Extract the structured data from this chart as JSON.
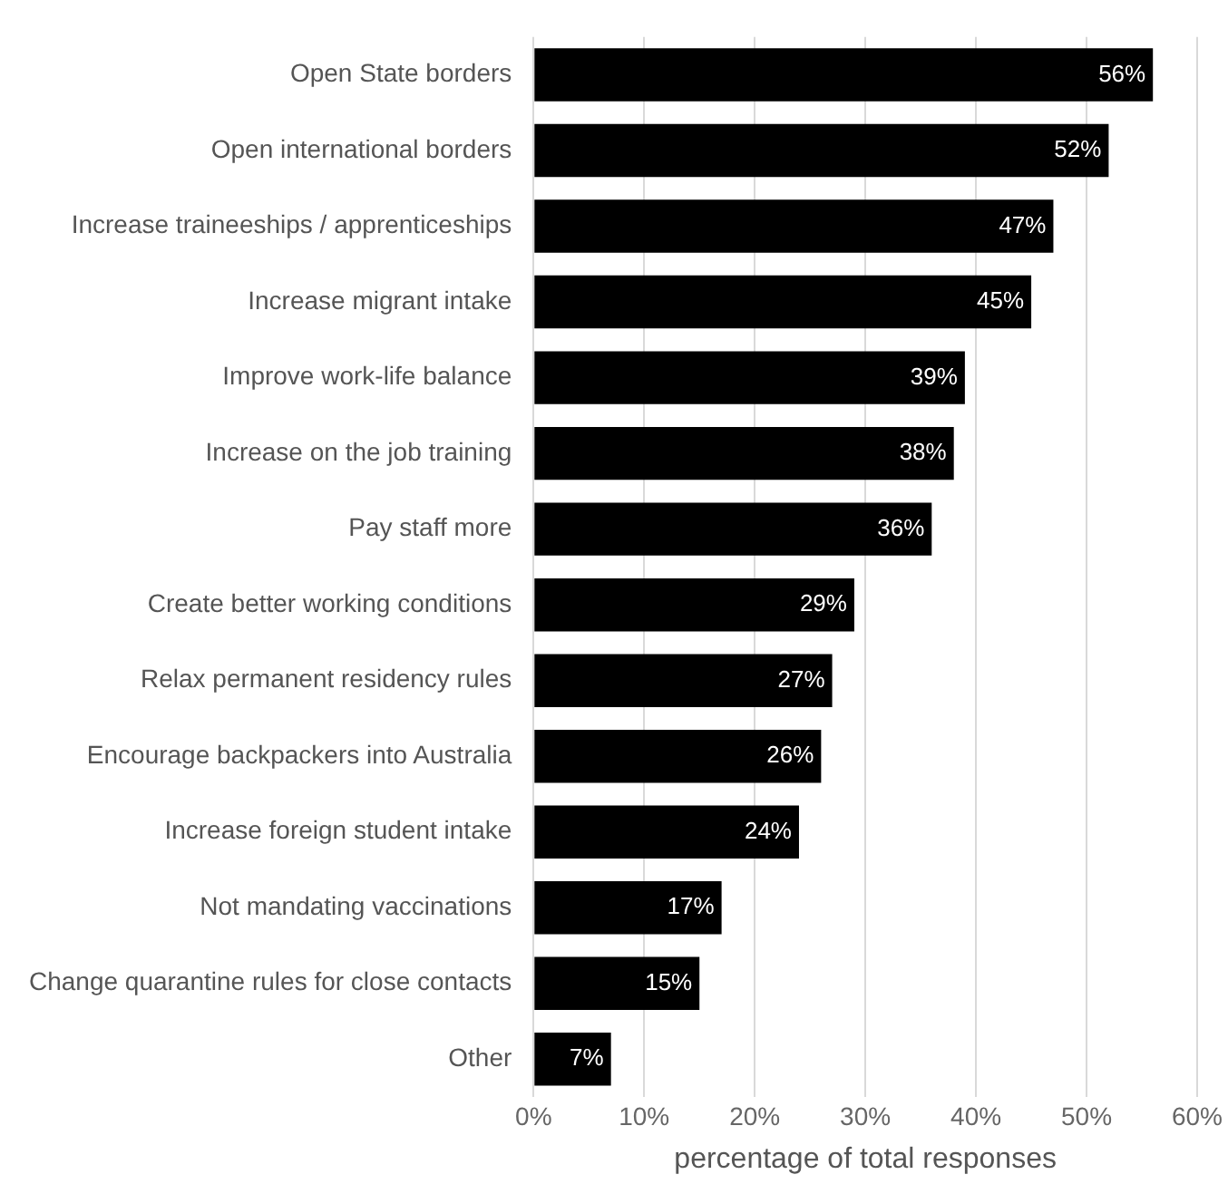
{
  "chart_data": {
    "type": "bar",
    "orientation": "horizontal",
    "xlabel": "percentage of total responses",
    "categories": [
      "Open State borders",
      "Open international borders",
      "Increase traineeships / apprenticeships",
      "Increase migrant intake",
      "Improve work-life balance",
      "Increase on the job training",
      "Pay staff more",
      "Create better working conditions",
      "Relax permanent residency rules",
      "Encourage backpackers into Australia",
      "Increase foreign student intake",
      "Not mandating vaccinations",
      "Change quarantine rules for close contacts",
      "Other"
    ],
    "values": [
      56,
      52,
      47,
      45,
      39,
      38,
      36,
      29,
      27,
      26,
      24,
      17,
      15,
      7
    ],
    "value_labels": [
      "56%",
      "52%",
      "47%",
      "45%",
      "39%",
      "38%",
      "36%",
      "29%",
      "27%",
      "26%",
      "24%",
      "17%",
      "15%",
      "7%"
    ],
    "color": "#000000",
    "xlim": [
      0,
      60
    ],
    "xticks": [
      {
        "value": 0,
        "label": "0%"
      },
      {
        "value": 10,
        "label": "10%"
      },
      {
        "value": 20,
        "label": "20%"
      },
      {
        "value": 30,
        "label": "30%"
      },
      {
        "value": 40,
        "label": "40%"
      },
      {
        "value": 50,
        "label": "50%"
      },
      {
        "value": 60,
        "label": "60%"
      }
    ],
    "grid": "x",
    "legend": false
  }
}
